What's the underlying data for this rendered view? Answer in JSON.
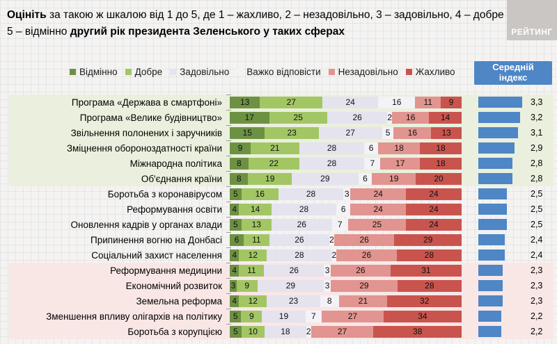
{
  "title": {
    "bold_start": "Оцініть",
    "normal": " за такою ж шкалою від 1 до 5, де 1 – жахливо, 2 – незадовільно, 3 – задовільно, 4 – добре 5 – відмінно ",
    "bold_end": "другий рік президента Зеленського у таких сферах"
  },
  "logo_text": "РЕЙТИНГ",
  "index_header": {
    "line1": "Середній",
    "line2": "індекс"
  },
  "legend": [
    {
      "label": "Відмінно",
      "color": "#6d9143",
      "text": "#111111"
    },
    {
      "label": "Добре",
      "color": "#a3c664",
      "text": "#111111"
    },
    {
      "label": "Задовільно",
      "color": "#e4e3ee",
      "text": "#111111"
    },
    {
      "label": "Важко відповісти",
      "color": "#f3f2f7",
      "text": "#111111"
    },
    {
      "label": "Незадовільно",
      "color": "#e29490",
      "text": "#111111"
    },
    {
      "label": "Жахливо",
      "color": "#c9544e",
      "text": "#111111"
    }
  ],
  "accent_colors": {
    "index_blue": "#4e86c6",
    "band_green": "#eaf0dd",
    "band_pink": "#f9e7e6",
    "logo_gray": "#c9c6c3"
  },
  "chart_data": {
    "type": "bar",
    "variant": "horizontal-stacked-100",
    "series_names": [
      "Відмінно",
      "Добре",
      "Задовільно",
      "Важко відповісти",
      "Незадовільно",
      "Жахливо"
    ],
    "index_scale": {
      "min": 1,
      "max": 3.5
    },
    "rows": [
      {
        "label": "Програма «Держава в смартфоні»",
        "values": [
          13,
          27,
          24,
          16,
          11,
          9
        ],
        "index_label": "3,3",
        "index_value": 3.3
      },
      {
        "label": "Програма «Велике будівництво»",
        "values": [
          17,
          25,
          26,
          2,
          16,
          14
        ],
        "index_label": "3,2",
        "index_value": 3.2
      },
      {
        "label": "Звільнення полонених і заручників",
        "values": [
          15,
          23,
          27,
          5,
          16,
          13
        ],
        "index_label": "3,1",
        "index_value": 3.1
      },
      {
        "label": "Зміцнення обороноздатності країни",
        "values": [
          9,
          21,
          28,
          6,
          18,
          18
        ],
        "index_label": "2,9",
        "index_value": 2.9
      },
      {
        "label": "Міжнародна політика",
        "values": [
          8,
          22,
          28,
          7,
          17,
          18
        ],
        "index_label": "2,8",
        "index_value": 2.8
      },
      {
        "label": "Об'єднання країни",
        "values": [
          8,
          19,
          29,
          6,
          19,
          20
        ],
        "index_label": "2,8",
        "index_value": 2.8
      },
      {
        "label": "Боротьба з коронавірусом",
        "values": [
          5,
          16,
          28,
          3,
          24,
          24
        ],
        "index_label": "2,5",
        "index_value": 2.5
      },
      {
        "label": "Реформування освіти",
        "values": [
          4,
          14,
          28,
          6,
          24,
          24
        ],
        "index_label": "2,5",
        "index_value": 2.5
      },
      {
        "label": "Оновлення кадрів у органах влади",
        "values": [
          5,
          13,
          26,
          7,
          25,
          24
        ],
        "index_label": "2,5",
        "index_value": 2.5
      },
      {
        "label": "Припинення вогню на Донбасі",
        "values": [
          6,
          11,
          26,
          2,
          26,
          29
        ],
        "index_label": "2,4",
        "index_value": 2.4
      },
      {
        "label": "Соціальний захист населення",
        "values": [
          4,
          12,
          28,
          2,
          26,
          28
        ],
        "index_label": "2,4",
        "index_value": 2.4
      },
      {
        "label": "Реформування медицини",
        "values": [
          4,
          11,
          26,
          3,
          26,
          31
        ],
        "index_label": "2,3",
        "index_value": 2.3
      },
      {
        "label": "Економічний розвиток",
        "values": [
          3,
          9,
          29,
          3,
          29,
          28
        ],
        "index_label": "2,3",
        "index_value": 2.3
      },
      {
        "label": "Земельна реформа",
        "values": [
          4,
          12,
          23,
          8,
          21,
          32
        ],
        "index_label": "2,3",
        "index_value": 2.3
      },
      {
        "label": "Зменшення впливу олігархів на політику",
        "values": [
          5,
          9,
          19,
          7,
          27,
          34
        ],
        "index_label": "2,2",
        "index_value": 2.2
      },
      {
        "label": "Боротьба з корупцією",
        "values": [
          5,
          10,
          18,
          2,
          27,
          38
        ],
        "index_label": "2,2",
        "index_value": 2.2
      }
    ],
    "row_groups": [
      {
        "first_row": 0,
        "last_row": 5,
        "background": "#eaf0dd"
      },
      {
        "first_row": 11,
        "last_row": 15,
        "background": "#f9e7e6"
      }
    ]
  }
}
